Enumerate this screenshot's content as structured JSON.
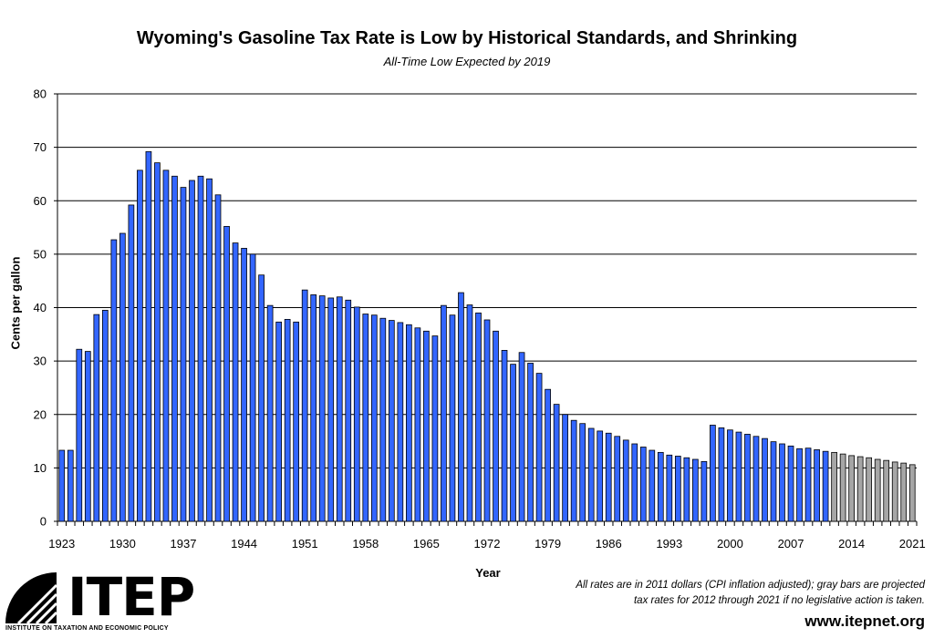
{
  "chart_data": {
    "type": "bar",
    "title": "Wyoming's Gasoline Tax Rate is Low by Historical Standards, and Shrinking",
    "subtitle": "All-Time Low Expected by 2019",
    "xlabel": "Year",
    "ylabel": "Cents per gallon",
    "ylim": [
      0,
      80
    ],
    "yticks": [
      0,
      10,
      20,
      30,
      40,
      50,
      60,
      70,
      80
    ],
    "xticks": [
      "1923",
      "1930",
      "1937",
      "1944",
      "1951",
      "1958",
      "1965",
      "1972",
      "1979",
      "1986",
      "1993",
      "2000",
      "2007",
      "2014",
      "2021"
    ],
    "grid": true,
    "series": [
      {
        "x": [
          1923,
          1924,
          1925,
          1926,
          1927,
          1928,
          1929,
          1930,
          1931,
          1932,
          1933,
          1934,
          1935,
          1936,
          1937,
          1938,
          1939,
          1940,
          1941,
          1942,
          1943,
          1944,
          1945,
          1946,
          1947,
          1948,
          1949,
          1950,
          1951,
          1952,
          1953,
          1954,
          1955,
          1956,
          1957,
          1958,
          1959,
          1960,
          1961,
          1962,
          1963,
          1964,
          1965,
          1966,
          1967,
          1968,
          1969,
          1970,
          1971,
          1972,
          1973,
          1974,
          1975,
          1976,
          1977,
          1978,
          1979,
          1980,
          1981,
          1982,
          1983,
          1984,
          1985,
          1986,
          1987,
          1988,
          1989,
          1990,
          1991,
          1992,
          1993,
          1994,
          1995,
          1996,
          1997,
          1998,
          1999,
          2000,
          2001,
          2002,
          2003,
          2004,
          2005,
          2006,
          2007,
          2008,
          2009,
          2010,
          2011
        ],
        "values": [
          13.3,
          13.3,
          32.2,
          31.8,
          38.7,
          39.5,
          52.7,
          53.9,
          59.2,
          65.7,
          69.2,
          67.1,
          65.7,
          64.6,
          62.5,
          63.8,
          64.6,
          64.1,
          61.1,
          55.2,
          52.1,
          51.1,
          50.0,
          46.1,
          40.4,
          37.3,
          37.8,
          37.3,
          43.3,
          42.4,
          42.2,
          41.8,
          42.0,
          41.4,
          40.1,
          38.8,
          38.6,
          38.0,
          37.6,
          37.2,
          36.8,
          36.2,
          35.6,
          34.7,
          40.4,
          38.6,
          42.8,
          40.5,
          39.0,
          37.7,
          35.6,
          32.0,
          29.4,
          31.6,
          29.6,
          27.7,
          24.7,
          21.9,
          20.0,
          18.9,
          18.3,
          17.4,
          16.9,
          16.5,
          15.9,
          15.2,
          14.5,
          13.9,
          13.3,
          12.9,
          12.4,
          12.2,
          11.9,
          11.6,
          11.2,
          18.0,
          17.5,
          17.1,
          16.7,
          16.3,
          15.9,
          15.5,
          14.9,
          14.5,
          14.1,
          13.6,
          13.7,
          13.4,
          13.1
        ],
        "color": "#3366ff"
      },
      {
        "x": [
          2012,
          2013,
          2014,
          2015,
          2016,
          2017,
          2018,
          2019,
          2020,
          2021
        ],
        "values": [
          12.9,
          12.6,
          12.3,
          12.1,
          11.9,
          11.6,
          11.4,
          11.1,
          10.9,
          10.6
        ],
        "color": "#a6a6a6"
      }
    ]
  },
  "axis_title_y": "Cents per gallon",
  "axis_title_x": "Year",
  "note_line1": "All rates are in 2011 dollars (CPI inflation adjusted); gray bars are projected",
  "note_line2": "tax rates for 2012 through 2021 if no legislative action is taken.",
  "website": "www.itepnet.org",
  "logo": {
    "name": "ITEP",
    "tagline": "INSTITUTE ON TAXATION AND ECONOMIC POLICY"
  }
}
